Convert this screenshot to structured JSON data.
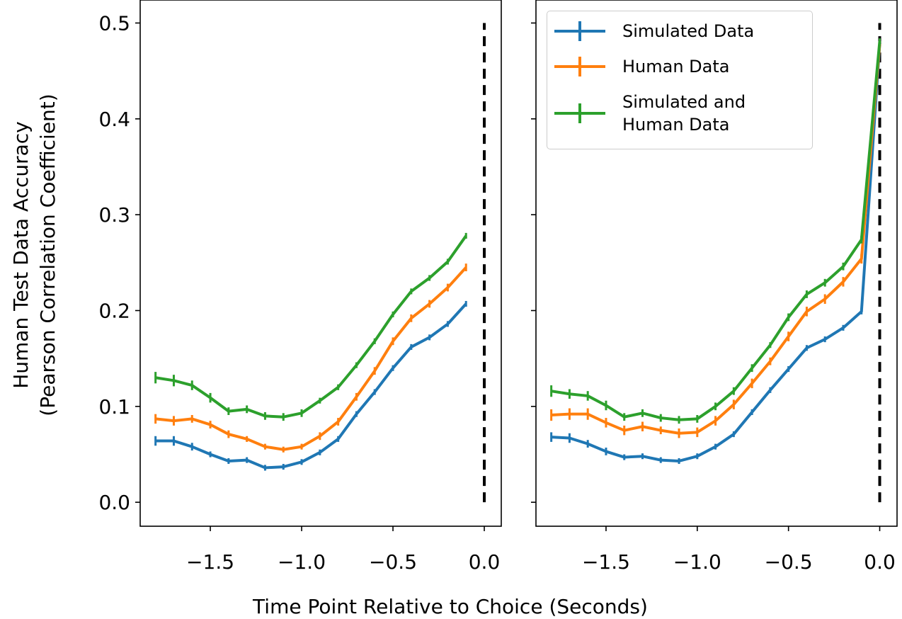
{
  "chart_data": [
    {
      "type": "line",
      "ylabel": "Human Test Data Accuracy\n(Pearson Correlation Coefficient)",
      "xlabel": "Time Point Relative to Choice (Seconds)",
      "x": [
        -1.8,
        -1.7,
        -1.6,
        -1.5,
        -1.4,
        -1.3,
        -1.2,
        -1.1,
        -1.0,
        -0.9,
        -0.8,
        -0.7,
        -0.6,
        -0.5,
        -0.4,
        -0.3,
        -0.2,
        -0.1
      ],
      "series": [
        {
          "color": "#1f77b4",
          "values": [
            0.064,
            0.064,
            0.058,
            0.05,
            0.043,
            0.044,
            0.036,
            0.037,
            0.042,
            0.052,
            0.066,
            0.092,
            0.115,
            0.14,
            0.162,
            0.172,
            0.186,
            0.207
          ],
          "errors": [
            0.005,
            0.005,
            0.004,
            0.003,
            0.003,
            0.003,
            0.003,
            0.003,
            0.003,
            0.003,
            0.003,
            0.003,
            0.003,
            0.003,
            0.003,
            0.003,
            0.003,
            0.003
          ]
        },
        {
          "color": "#ff7f0e",
          "values": [
            0.087,
            0.085,
            0.087,
            0.081,
            0.071,
            0.066,
            0.058,
            0.055,
            0.058,
            0.069,
            0.084,
            0.11,
            0.137,
            0.168,
            0.192,
            0.207,
            0.224,
            0.245
          ],
          "errors": [
            0.005,
            0.005,
            0.004,
            0.004,
            0.004,
            0.003,
            0.003,
            0.003,
            0.003,
            0.004,
            0.004,
            0.004,
            0.004,
            0.004,
            0.004,
            0.004,
            0.004,
            0.004
          ]
        },
        {
          "color": "#2ca02c",
          "values": [
            0.13,
            0.127,
            0.122,
            0.109,
            0.095,
            0.097,
            0.09,
            0.089,
            0.093,
            0.106,
            0.12,
            0.143,
            0.168,
            0.196,
            0.22,
            0.234,
            0.251,
            0.278
          ],
          "errors": [
            0.006,
            0.006,
            0.005,
            0.005,
            0.004,
            0.004,
            0.004,
            0.004,
            0.004,
            0.003,
            0.003,
            0.003,
            0.003,
            0.003,
            0.003,
            0.003,
            0.003,
            0.003
          ]
        }
      ],
      "xlim": [
        -1.884,
        0.093
      ],
      "ylim": [
        -0.025,
        0.524
      ],
      "xticks": [
        {
          "value": -1.5,
          "label": "−1.5"
        },
        {
          "value": -1.0,
          "label": "−1.0"
        },
        {
          "value": -0.5,
          "label": "−0.5"
        },
        {
          "value": 0.0,
          "label": "0.0"
        }
      ],
      "yticks": [
        {
          "value": 0.0,
          "label": "0.0"
        },
        0.1,
        0.2,
        0.3,
        0.4,
        0.5
      ],
      "vline": {
        "x": 0,
        "ymin": 0,
        "ymax": 0.5,
        "color": "#000000"
      }
    },
    {
      "type": "line",
      "sharey": true,
      "legend": "upper right",
      "x": [
        -1.8,
        -1.7,
        -1.6,
        -1.5,
        -1.4,
        -1.3,
        -1.2,
        -1.1,
        -1.0,
        -0.9,
        -0.8,
        -0.7,
        -0.6,
        -0.5,
        -0.4,
        -0.3,
        -0.2,
        -0.1,
        0.0
      ],
      "series": [
        {
          "name": "Simulated Data",
          "color": "#1f77b4",
          "values": [
            0.068,
            0.067,
            0.061,
            0.053,
            0.047,
            0.048,
            0.044,
            0.043,
            0.048,
            0.058,
            0.071,
            0.094,
            0.117,
            0.139,
            0.161,
            0.17,
            0.182,
            0.199,
            0.478
          ],
          "errors": [
            0.005,
            0.005,
            0.004,
            0.004,
            0.003,
            0.003,
            0.003,
            0.003,
            0.003,
            0.003,
            0.003,
            0.003,
            0.003,
            0.003,
            0.003,
            0.003,
            0.003,
            0.003,
            0.003
          ]
        },
        {
          "name": "Human Data",
          "color": "#ff7f0e",
          "values": [
            0.091,
            0.092,
            0.092,
            0.083,
            0.075,
            0.079,
            0.075,
            0.072,
            0.073,
            0.085,
            0.102,
            0.124,
            0.147,
            0.173,
            0.199,
            0.212,
            0.23,
            0.254,
            0.478
          ],
          "errors": [
            0.006,
            0.006,
            0.006,
            0.005,
            0.005,
            0.005,
            0.004,
            0.005,
            0.005,
            0.005,
            0.005,
            0.005,
            0.004,
            0.005,
            0.005,
            0.005,
            0.005,
            0.005,
            0.003
          ]
        },
        {
          "name": "Simulated and\nHuman Data",
          "color": "#2ca02c",
          "values": [
            0.116,
            0.113,
            0.111,
            0.101,
            0.089,
            0.093,
            0.088,
            0.086,
            0.087,
            0.1,
            0.116,
            0.14,
            0.164,
            0.193,
            0.217,
            0.229,
            0.246,
            0.274,
            0.481
          ],
          "errors": [
            0.006,
            0.005,
            0.005,
            0.005,
            0.004,
            0.004,
            0.004,
            0.004,
            0.004,
            0.004,
            0.004,
            0.004,
            0.003,
            0.004,
            0.004,
            0.004,
            0.004,
            0.004,
            0.003
          ]
        }
      ],
      "xlim": [
        -1.884,
        0.095
      ],
      "xticks": [
        {
          "value": -1.5,
          "label": "−1.5"
        },
        {
          "value": -1.0,
          "label": "−1.0"
        },
        {
          "value": -0.5,
          "label": "−0.5"
        },
        {
          "value": 0.0,
          "label": "0.0"
        }
      ],
      "vline": {
        "x": 0,
        "ymin": 0,
        "ymax": 0.5,
        "color": "#000000"
      }
    }
  ]
}
